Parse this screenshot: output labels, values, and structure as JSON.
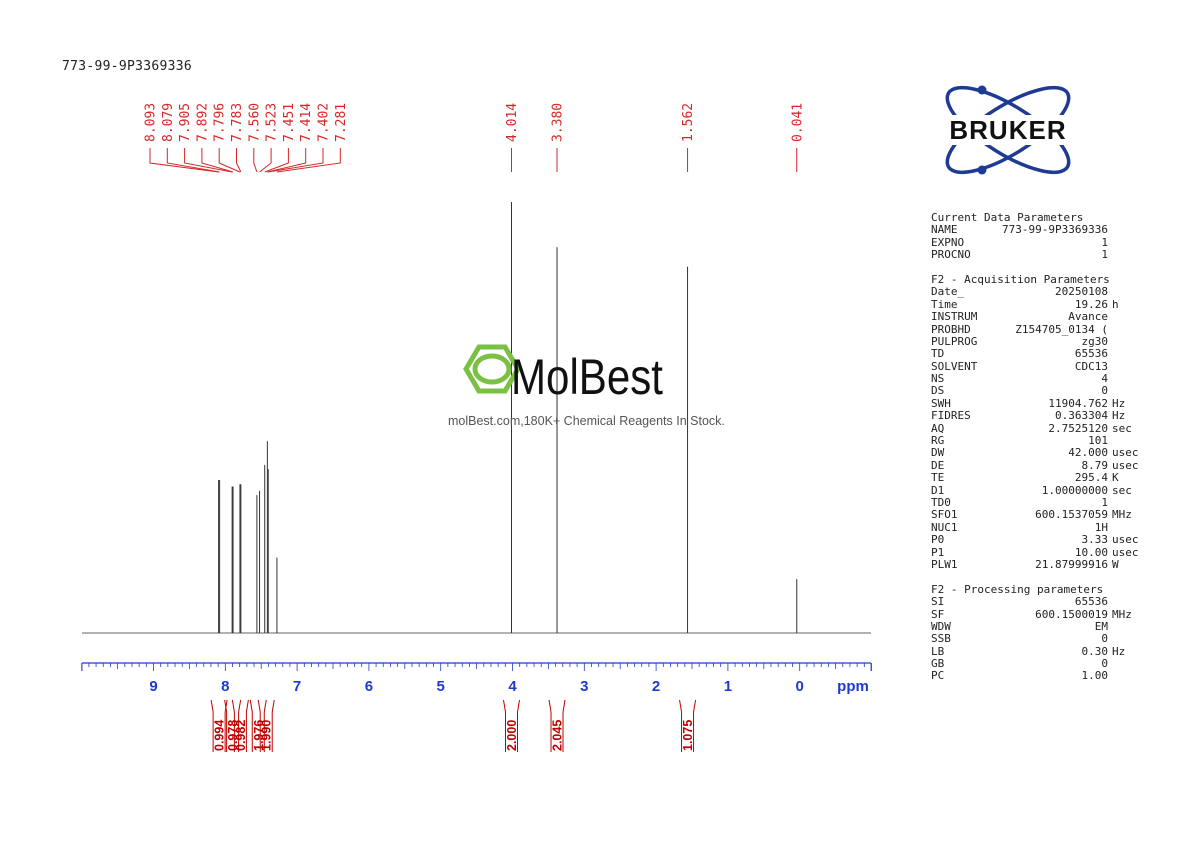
{
  "sample_id": "773-99-9P3369336",
  "brand": {
    "name": "BRUKER",
    "color": "#1f3a93"
  },
  "watermark": {
    "logo_text": "MolBest",
    "caption": "molBest.com,180K+ Chemical Reagents In Stock.",
    "accent": "#7ac143"
  },
  "colors": {
    "peak_labels": "#d62728",
    "axis": "#1f3ad0",
    "spectrum": "#333333",
    "integral": "#c00000"
  },
  "chart_data": {
    "type": "line",
    "xlabel": "ppm",
    "xlim": [
      10,
      -1
    ],
    "x_reversed": true,
    "ticks": [
      9,
      8,
      7,
      6,
      5,
      4,
      3,
      2,
      1,
      0
    ],
    "tick_labels": [
      "9",
      "8",
      "7",
      "6",
      "5",
      "4",
      "3",
      "2",
      "1",
      "0"
    ],
    "peak_labels": [
      "8.093",
      "8.079",
      "7.905",
      "7.892",
      "7.796",
      "7.783",
      "7.560",
      "7.523",
      "7.451",
      "7.414",
      "7.402",
      "7.281",
      "4.014",
      "3.380",
      "1.562",
      "0.041"
    ],
    "peaks": [
      {
        "ppm": 8.093,
        "height": 0.355
      },
      {
        "ppm": 8.079,
        "height": 0.355
      },
      {
        "ppm": 7.905,
        "height": 0.34
      },
      {
        "ppm": 7.892,
        "height": 0.34
      },
      {
        "ppm": 7.796,
        "height": 0.345
      },
      {
        "ppm": 7.783,
        "height": 0.345
      },
      {
        "ppm": 7.56,
        "height": 0.32
      },
      {
        "ppm": 7.523,
        "height": 0.33
      },
      {
        "ppm": 7.451,
        "height": 0.39
      },
      {
        "ppm": 7.414,
        "height": 0.445
      },
      {
        "ppm": 7.402,
        "height": 0.38
      },
      {
        "ppm": 7.281,
        "height": 0.175
      },
      {
        "ppm": 4.014,
        "height": 1.0
      },
      {
        "ppm": 3.38,
        "height": 0.895
      },
      {
        "ppm": 1.562,
        "height": 0.85
      },
      {
        "ppm": 0.041,
        "height": 0.125
      }
    ],
    "integrals": [
      {
        "ppm": 8.086,
        "value": "0.994"
      },
      {
        "ppm": 7.898,
        "value": "0.978"
      },
      {
        "ppm": 7.79,
        "value": "0.982"
      },
      {
        "ppm": 7.541,
        "value": "1.976"
      },
      {
        "ppm": 7.43,
        "value": "1.990"
      },
      {
        "ppm": 4.014,
        "value": "2.000"
      },
      {
        "ppm": 3.38,
        "value": "2.045"
      },
      {
        "ppm": 1.562,
        "value": "1.075"
      }
    ]
  },
  "params": {
    "current": {
      "title": "Current Data Parameters",
      "rows": [
        {
          "label": "NAME",
          "value": "773-99-9P3369336",
          "unit": ""
        },
        {
          "label": "EXPNO",
          "value": "1",
          "unit": ""
        },
        {
          "label": "PROCNO",
          "value": "1",
          "unit": ""
        }
      ]
    },
    "acquisition": {
      "title": "F2 - Acquisition Parameters",
      "rows": [
        {
          "label": "Date_",
          "value": "20250108",
          "unit": ""
        },
        {
          "label": "Time",
          "value": "19.26",
          "unit": "h"
        },
        {
          "label": "INSTRUM",
          "value": "Avance",
          "unit": ""
        },
        {
          "label": "PROBHD",
          "value": "Z154705_0134 (",
          "unit": ""
        },
        {
          "label": "PULPROG",
          "value": "zg30",
          "unit": ""
        },
        {
          "label": "TD",
          "value": "65536",
          "unit": ""
        },
        {
          "label": "SOLVENT",
          "value": "CDC13",
          "unit": ""
        },
        {
          "label": "NS",
          "value": "4",
          "unit": ""
        },
        {
          "label": "DS",
          "value": "0",
          "unit": ""
        },
        {
          "label": "SWH",
          "value": "11904.762",
          "unit": "Hz"
        },
        {
          "label": "FIDRES",
          "value": "0.363304",
          "unit": "Hz"
        },
        {
          "label": "AQ",
          "value": "2.7525120",
          "unit": "sec"
        },
        {
          "label": "RG",
          "value": "101",
          "unit": ""
        },
        {
          "label": "DW",
          "value": "42.000",
          "unit": "usec"
        },
        {
          "label": "DE",
          "value": "8.79",
          "unit": "usec"
        },
        {
          "label": "TE",
          "value": "295.4",
          "unit": "K"
        },
        {
          "label": "D1",
          "value": "1.00000000",
          "unit": "sec"
        },
        {
          "label": "TD0",
          "value": "1",
          "unit": ""
        },
        {
          "label": "SFO1",
          "value": "600.1537059",
          "unit": "MHz"
        },
        {
          "label": "NUC1",
          "value": "1H",
          "unit": ""
        },
        {
          "label": "P0",
          "value": "3.33",
          "unit": "usec"
        },
        {
          "label": "P1",
          "value": "10.00",
          "unit": "usec"
        },
        {
          "label": "PLW1",
          "value": "21.87999916",
          "unit": "W"
        }
      ]
    },
    "processing": {
      "title": "F2 - Processing parameters",
      "rows": [
        {
          "label": "SI",
          "value": "65536",
          "unit": ""
        },
        {
          "label": "SF",
          "value": "600.1500019",
          "unit": "MHz"
        },
        {
          "label": "WDW",
          "value": "EM",
          "unit": ""
        },
        {
          "label": "SSB",
          "value": "0",
          "unit": ""
        },
        {
          "label": "LB",
          "value": "0.30",
          "unit": "Hz"
        },
        {
          "label": "GB",
          "value": "0",
          "unit": ""
        },
        {
          "label": "PC",
          "value": "1.00",
          "unit": ""
        }
      ]
    }
  }
}
